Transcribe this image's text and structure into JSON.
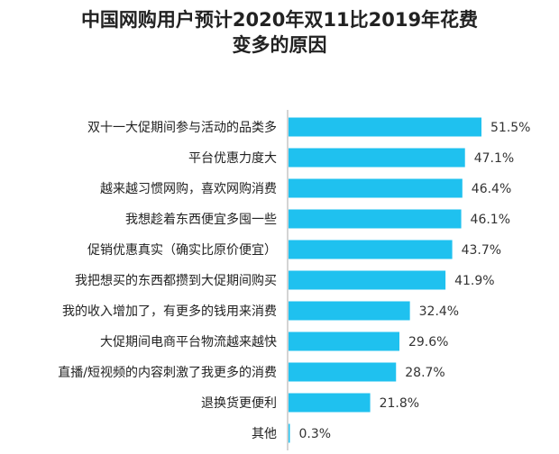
{
  "title_line1": "中国网购用户预计2020年双11比2019年花费",
  "title_line2": "变多的原因",
  "chart_data": {
    "type": "bar",
    "orientation": "horizontal",
    "title": "中国网购用户预计2020年双11比2019年花费变多的原因",
    "categories": [
      "双十一大促期间参与活动的品类多",
      "平台优惠力度大",
      "越来越习惯网购，喜欢网购消费",
      "我想趁着东西便宜多囤一些",
      "促销优惠真实（确实比原价便宜）",
      "我把想买的东西都攒到大促期间购买",
      "我的收入增加了，有更多的钱用来消费",
      "大促期间电商平台物流越来越快",
      "直播/短视频的内容刺激了我更多的消费",
      "退换货更便利",
      "其他"
    ],
    "values": [
      51.5,
      47.1,
      46.4,
      46.1,
      43.7,
      41.9,
      32.4,
      29.6,
      28.7,
      21.8,
      0.3
    ],
    "value_labels": [
      "51.5%",
      "47.1%",
      "46.4%",
      "46.1%",
      "43.7%",
      "41.9%",
      "32.4%",
      "29.6%",
      "28.7%",
      "21.8%",
      "0.3%"
    ],
    "unit": "%",
    "bar_color": "#1fc1ef",
    "axis_color": "#aaaaaa",
    "xlim": [
      0,
      60
    ]
  }
}
